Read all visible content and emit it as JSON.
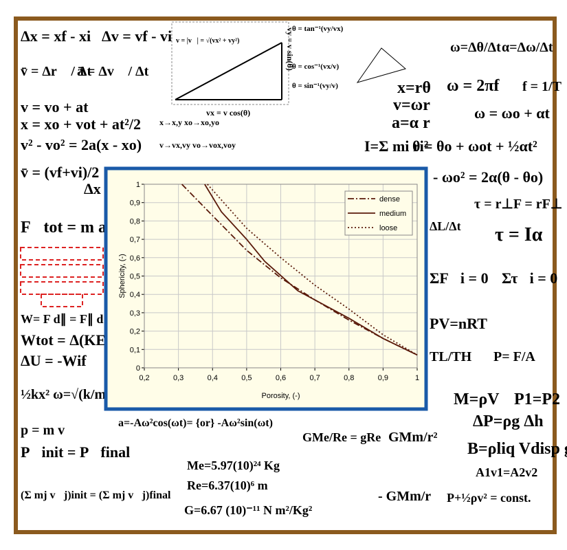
{
  "chart_data": {
    "type": "line",
    "xlabel": "Porosity, (-)",
    "ylabel": "Sphericity, (-)",
    "xlim": [
      0.2,
      1
    ],
    "ylim": [
      0,
      1
    ],
    "xticks": [
      {
        "value": 0.2,
        "label": "0,2"
      },
      {
        "value": 0.3,
        "label": "0,3"
      },
      {
        "value": 0.4,
        "label": "0,4"
      },
      {
        "value": 0.5,
        "label": "0,5"
      },
      {
        "value": 0.6,
        "label": "0,6"
      },
      {
        "value": 0.7,
        "label": "0,7"
      },
      {
        "value": 0.8,
        "label": "0,8"
      },
      {
        "value": 0.9,
        "label": "0,9"
      },
      1
    ],
    "yticks": [
      0,
      {
        "value": 0.1,
        "label": "0,1"
      },
      {
        "value": 0.2,
        "label": "0,2"
      },
      {
        "value": 0.3,
        "label": "0,3"
      },
      {
        "value": 0.4,
        "label": "0,4"
      },
      {
        "value": 0.5,
        "label": "0,5"
      },
      {
        "value": 0.6,
        "label": "0,6"
      },
      {
        "value": 0.7,
        "label": "0,7"
      },
      {
        "value": 0.8,
        "label": "0,8"
      },
      {
        "value": 0.9,
        "label": "0,9"
      },
      1
    ],
    "grid": true,
    "legend": "upper right",
    "series": [
      {
        "name": "dense",
        "color": "#5a1a0a",
        "dash": "dash-dot",
        "x": [
          0.31,
          0.41,
          0.5,
          0.6,
          0.7,
          0.8,
          0.9,
          1
        ],
        "values": [
          1,
          0.81,
          0.64,
          0.49,
          0.37,
          0.26,
          0.16,
          0.07
        ]
      },
      {
        "name": "medium",
        "color": "#5a1a0a",
        "dash": "solid",
        "x": [
          0.377,
          0.426,
          0.5,
          0.553,
          0.65,
          0.8,
          0.9,
          1
        ],
        "values": [
          1,
          0.85,
          0.7,
          0.58,
          0.42,
          0.27,
          0.16,
          0.07
        ]
      },
      {
        "name": "loose",
        "color": "#5a1a0a",
        "dash": "dotted",
        "x": [
          0.385,
          0.5,
          0.6,
          0.7,
          0.8,
          0.9,
          1
        ],
        "values": [
          1,
          0.76,
          0.6,
          0.45,
          0.32,
          0.18,
          0.07
        ]
      }
    ]
  },
  "background": {
    "formulas": [
      "Δx = xf - xi",
      "Δv = vf - vi",
      "v̄ = Δr⃗ / Δt",
      "ā = Δv⃗ / Δt",
      "θ = tan⁻¹(vy/vx)",
      "θ = cos⁻¹(vx/v)",
      "θ = sin⁻¹(vy/v)",
      "v = |v⃗| = √(vx² + vy²)",
      "vx = v cos(θ)",
      "vy = v sin(θ)",
      "x=rθ",
      "v=ωr",
      "a=α r",
      "ω=Δθ/Δt",
      "α=Δω/Δt",
      "ω = 2πf",
      "f = 1/T",
      "ω = ωo + αt",
      "θ = θo + ωot + ½αt²",
      "I=Σ mi ri²",
      "- ωo² = 2α(θ - θo)",
      "τ = r⊥F = rF⊥",
      "τ = Iα",
      "ΣF⃗i = 0",
      "Στ⃗i = 0",
      "PV=nRT",
      "TL/TH",
      "P= F/A",
      "M=ρV",
      "P1=P2",
      "ΔP=ρg Δh",
      "B=ρliq Vdisp g",
      "A1v1=A2v2",
      "P+½ρv² = const.",
      "v = vo + at",
      "x = xo + vot + at²/2",
      "v² - vo² = 2a(x - xo)",
      "v̄ = (vf+vi)/2",
      "Δx",
      "x→x,y  xo→xo,yo",
      "v→vx,vy  vo→vox,voy",
      "F⃗tot =  m a⃗",
      "W= F d∥ = F∥ d",
      "Wtot = Δ(KE)",
      "ΔU = -Wif",
      "½kx²  ω=√(k/m)",
      "p = m v",
      "P⃗init = P⃗final",
      "(Σ mj v⃗j)init = (Σ mj v⃗j)final",
      "a=-Aω²cos(ωt)= {or} -Aω²sin(ωt)",
      "GMe/Re = gRe",
      "GMm/r²",
      "Me=5.97(10)²⁴ Kg",
      "Re=6.37(10)⁶ m",
      "G=6.67 (10)⁻¹¹ N m²/Kg²",
      "- GMm/r",
      "ΔL/Δt"
    ]
  }
}
